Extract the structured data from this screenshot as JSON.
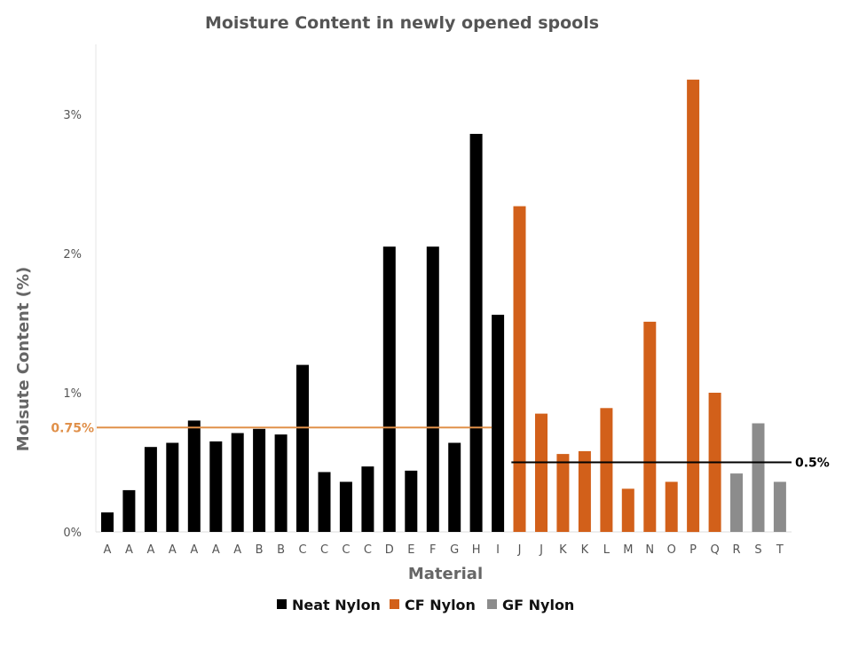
{
  "chart_data": {
    "type": "bar",
    "title": "Moisture Content in newly opened spools",
    "xlabel": "Material",
    "ylabel": "Moisute Content (%)",
    "ylim": [
      0,
      3.5
    ],
    "yticks": [
      {
        "value": 0,
        "label": "0%"
      },
      {
        "value": 1,
        "label": "1%"
      },
      {
        "value": 2,
        "label": "2%"
      },
      {
        "value": 3,
        "label": "3%"
      }
    ],
    "categories": [
      "A",
      "A",
      "A",
      "A",
      "A",
      "A",
      "A",
      "B",
      "B",
      "C",
      "C",
      "C",
      "C",
      "D",
      "E",
      "F",
      "G",
      "H",
      "I",
      "J",
      "J",
      "K",
      "K",
      "L",
      "M",
      "N",
      "O",
      "P",
      "Q",
      "R",
      "S",
      "T"
    ],
    "values": [
      0.14,
      0.3,
      0.61,
      0.64,
      0.8,
      0.65,
      0.71,
      0.74,
      0.7,
      1.2,
      0.43,
      0.36,
      0.47,
      2.05,
      0.44,
      2.05,
      0.64,
      2.86,
      1.56,
      2.34,
      0.85,
      0.56,
      0.58,
      0.89,
      0.31,
      1.51,
      0.36,
      3.25,
      1.0,
      0.42,
      0.78,
      0.36
    ],
    "groups": [
      "Neat Nylon",
      "Neat Nylon",
      "Neat Nylon",
      "Neat Nylon",
      "Neat Nylon",
      "Neat Nylon",
      "Neat Nylon",
      "Neat Nylon",
      "Neat Nylon",
      "Neat Nylon",
      "Neat Nylon",
      "Neat Nylon",
      "Neat Nylon",
      "Neat Nylon",
      "Neat Nylon",
      "Neat Nylon",
      "Neat Nylon",
      "Neat Nylon",
      "Neat Nylon",
      "CF Nylon",
      "CF Nylon",
      "CF Nylon",
      "CF Nylon",
      "CF Nylon",
      "CF Nylon",
      "CF Nylon",
      "CF Nylon",
      "CF Nylon",
      "CF Nylon",
      "GF Nylon",
      "GF Nylon",
      "GF Nylon"
    ],
    "legend": [
      {
        "name": "Neat Nylon",
        "color": "#000000"
      },
      {
        "name": "CF Nylon",
        "color": "#d2601a"
      },
      {
        "name": "GF Nylon",
        "color": "#8c8c8c"
      }
    ],
    "reference_lines": [
      {
        "value": 0.75,
        "label": "0.75%",
        "color": "#e0904a",
        "label_side": "left",
        "from_index": 0,
        "to_index": 18
      },
      {
        "value": 0.5,
        "label": "0.5%",
        "color": "#000000",
        "label_side": "right",
        "from_index": 19,
        "to_index": 31
      }
    ],
    "grid": false,
    "legend_position": "bottom"
  }
}
